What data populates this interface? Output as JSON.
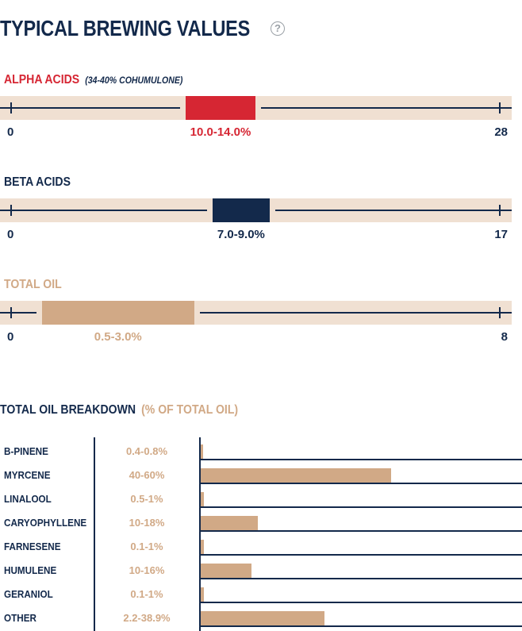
{
  "header": {
    "title": "TYPICAL BREWING VALUES",
    "help_icon": "question-circle-icon",
    "help_glyph": "?"
  },
  "colors": {
    "navy": "#13294b",
    "red": "#d62633",
    "tan": "#d1a986",
    "track": "#f0e0d2"
  },
  "chart_data": [
    {
      "type": "range",
      "label": "ALPHA ACIDS",
      "note": "(34-40% COHUMULONE)",
      "axis_min": 0,
      "axis_max": 28,
      "axis_min_label": "0",
      "axis_max_label": "28",
      "range": [
        10.0,
        14.0
      ],
      "range_label": "10.0-14.0%",
      "color": "#d62633"
    },
    {
      "type": "range",
      "label": "BETA ACIDS",
      "note": "",
      "axis_min": 0,
      "axis_max": 17,
      "axis_min_label": "0",
      "axis_max_label": "17",
      "range": [
        7.0,
        9.0
      ],
      "range_label": "7.0-9.0%",
      "color": "#13294b"
    },
    {
      "type": "range",
      "label": "TOTAL OIL",
      "note": "",
      "axis_min": 0,
      "axis_max": 8,
      "axis_min_label": "0",
      "axis_max_label": "8",
      "range": [
        0.5,
        3.0
      ],
      "range_label": "0.5-3.0%",
      "color": "#d1a986"
    },
    {
      "type": "bar",
      "title": "TOTAL OIL BREAKDOWN",
      "subtitle": "(% OF TOTAL OIL)",
      "xlim": [
        0,
        100
      ],
      "categories": [
        "B-PINENE",
        "MYRCENE",
        "LINALOOL",
        "CARYOPHYLLENE",
        "FARNESENE",
        "HUMULENE",
        "GERANIOL",
        "OTHER"
      ],
      "range_labels": [
        "0.4-0.8%",
        "40-60%",
        "0.5-1%",
        "10-18%",
        "0.1-1%",
        "10-16%",
        "0.1-1%",
        "2.2-38.9%"
      ],
      "values": [
        0.8,
        60,
        1,
        18,
        1,
        16,
        1,
        38.9
      ],
      "color": "#d1a986"
    }
  ]
}
